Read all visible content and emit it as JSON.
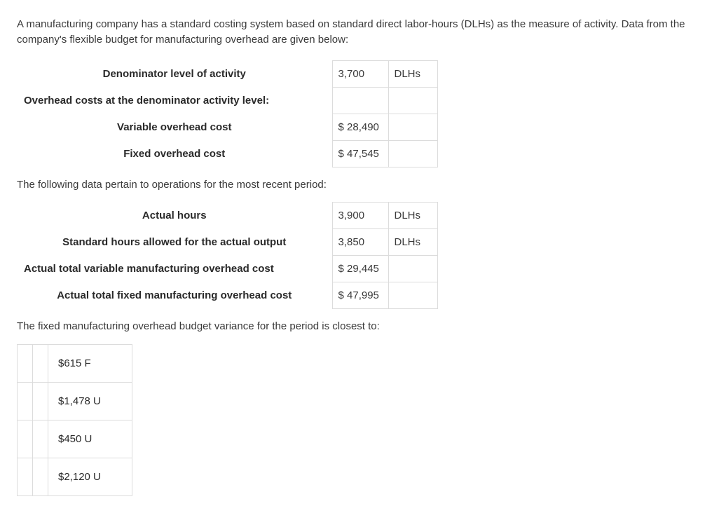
{
  "intro": "A manufacturing company has a standard costing system based on standard direct labor-hours (DLHs) as the measure of activity. Data from the company's flexible budget for manufacturing overhead are given below:",
  "table1": {
    "r1": {
      "label": "Denominator level of activity",
      "val": "3,700",
      "unit": "DLHs"
    },
    "r2": {
      "label": "Overhead costs at the denominator activity level:",
      "val": "",
      "unit": ""
    },
    "r3": {
      "label": "Variable overhead cost",
      "val": "$ 28,490",
      "unit": ""
    },
    "r4": {
      "label": "Fixed overhead cost",
      "val": "$ 47,545",
      "unit": ""
    }
  },
  "inter1": "The following data pertain to operations for the most recent period:",
  "table2": {
    "r1": {
      "label": "Actual hours",
      "val": "3,900",
      "unit": "DLHs"
    },
    "r2": {
      "label": "Standard hours allowed for the actual output",
      "val": "3,850",
      "unit": "DLHs"
    },
    "r3": {
      "label": "Actual total variable manufacturing overhead cost",
      "val": "$ 29,445",
      "unit": ""
    },
    "r4": {
      "label": "Actual total fixed manufacturing overhead cost",
      "val": "$ 47,995",
      "unit": ""
    }
  },
  "question": "The fixed manufacturing overhead budget variance for the period is closest to:",
  "options": {
    "a": "$615 F",
    "b": "$1,478 U",
    "c": "$450 U",
    "d": "$2,120 U"
  }
}
